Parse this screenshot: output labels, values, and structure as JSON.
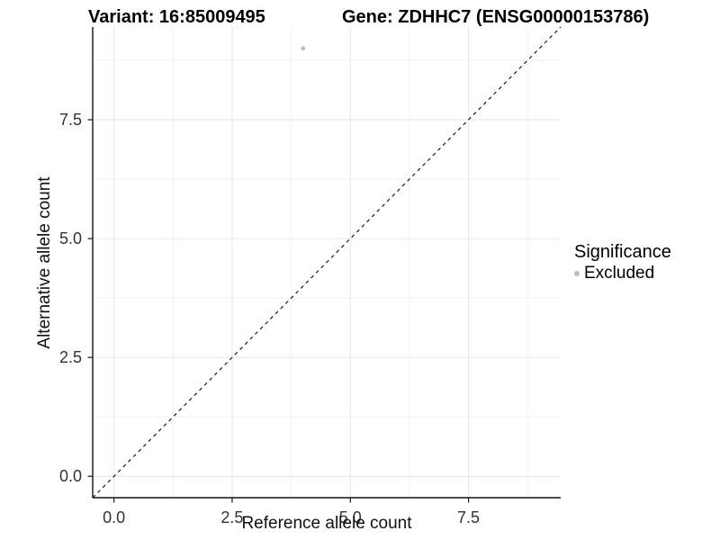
{
  "header": {
    "variant_title": "Variant: 16:85009495",
    "gene_title": "Gene: ZDHHC7 (ENSG00000153786)"
  },
  "chart_data": {
    "type": "scatter",
    "xlabel": "Reference allele count",
    "ylabel": "Alternative allele count",
    "xlim": [
      -0.45,
      9.45
    ],
    "ylim": [
      -0.45,
      9.45
    ],
    "x_major_ticks": [
      0,
      2.5,
      5,
      7.5
    ],
    "y_major_ticks": [
      0,
      2.5,
      5,
      7.5
    ],
    "x_tick_labels": [
      "0.0",
      "2.5",
      "5.0",
      "7.5"
    ],
    "y_tick_labels": [
      "0.0",
      "2.5",
      "5.0",
      "7.5"
    ],
    "x_minor_ticks": [
      1.25,
      3.75,
      6.25,
      8.75
    ],
    "y_minor_ticks": [
      1.25,
      3.75,
      6.25,
      8.75
    ],
    "grid": true,
    "points": [
      {
        "x": 4,
        "y": 9,
        "series": "Excluded"
      }
    ],
    "identity_line": {
      "equation": "y = x",
      "style": "dashed"
    },
    "legend": {
      "title": "Significance",
      "position": "right",
      "items": [
        {
          "label": "Excluded",
          "color": "#bdbdbd"
        }
      ]
    },
    "colors": {
      "point": "#bdbdbd",
      "grid_major": "#e6e6e6",
      "grid_minor": "#f2f2f2",
      "axis_line": "#141414",
      "dashed_line": "#1a1a1a",
      "tick_text": "#333333"
    }
  }
}
